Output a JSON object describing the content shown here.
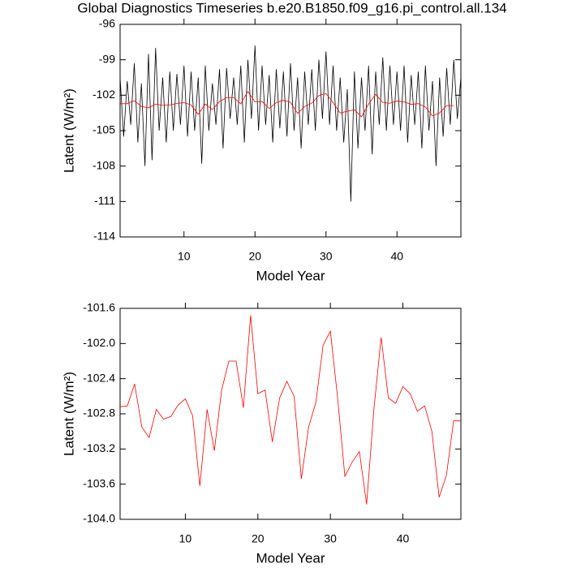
{
  "chart_data": [
    {
      "type": "line",
      "title": "Global Diagnostics Timeseries b.e20.B1850.f09_g16.pi_control.all.134",
      "xlabel": "Model Year",
      "ylabel": "Latent (W/m²)",
      "xlim": [
        1,
        49
      ],
      "xticks": [
        10,
        20,
        30,
        40
      ],
      "ylim": [
        -114,
        -96
      ],
      "yticks": [
        -96,
        -99,
        -102,
        -105,
        -108,
        -111,
        -114
      ],
      "series": [
        {
          "color": "#000000",
          "x": [
            1,
            1.5,
            2,
            2.5,
            3,
            3.5,
            4,
            4.5,
            5,
            5.5,
            6,
            6.5,
            7,
            7.5,
            8,
            8.5,
            9,
            9.5,
            10,
            10.5,
            11,
            11.5,
            12,
            12.5,
            13,
            13.5,
            14,
            14.5,
            15,
            15.5,
            16,
            16.5,
            17,
            17.5,
            18,
            18.5,
            19,
            19.5,
            20,
            20.5,
            21,
            21.5,
            22,
            22.5,
            23,
            23.5,
            24,
            24.5,
            25,
            25.5,
            26,
            26.5,
            27,
            27.5,
            28,
            28.5,
            29,
            29.5,
            30,
            30.5,
            31,
            31.5,
            32,
            32.5,
            33,
            33.5,
            34,
            34.5,
            35,
            35.5,
            36,
            36.5,
            37,
            37.5,
            38,
            38.5,
            39,
            39.5,
            40,
            40.5,
            41,
            41.5,
            42,
            42.5,
            43,
            43.5,
            44,
            44.5,
            45,
            45.5,
            46,
            46.5,
            47,
            47.5,
            48,
            48.5,
            49
          ],
          "values": [
            -100.5,
            -105.5,
            -100.8,
            -104.5,
            -99.3,
            -106,
            -101,
            -108,
            -98.5,
            -107.5,
            -98,
            -105,
            -100.5,
            -106,
            -100,
            -105,
            -100.2,
            -104.5,
            -99.5,
            -105.5,
            -100,
            -105,
            -100.5,
            -107.8,
            -99.5,
            -105,
            -101,
            -104.5,
            -99.8,
            -106.5,
            -99.7,
            -104,
            -100.5,
            -104.5,
            -99.5,
            -106,
            -99,
            -104,
            -97.8,
            -105,
            -99.5,
            -104.5,
            -100.3,
            -106,
            -99.8,
            -104.8,
            -100,
            -105.5,
            -99.3,
            -105,
            -100.5,
            -106.5,
            -100,
            -104.5,
            -99.8,
            -105,
            -99,
            -104,
            -98.3,
            -104.5,
            -99.5,
            -105,
            -100.5,
            -106,
            -101.5,
            -111,
            -100,
            -106.5,
            -100.5,
            -105,
            -99.5,
            -107,
            -100,
            -104.5,
            -98.8,
            -105,
            -99.5,
            -104.5,
            -100,
            -105,
            -99.5,
            -106,
            -100.3,
            -104.5,
            -100,
            -106.5,
            -99.5,
            -105,
            -100.8,
            -108,
            -100.5,
            -105.5,
            -99.7,
            -104.5,
            -99,
            -104,
            -100.5
          ]
        },
        {
          "color": "#ff0000",
          "x": [
            1,
            2,
            3,
            4,
            5,
            6,
            7,
            8,
            9,
            10,
            11,
            12,
            13,
            14,
            15,
            16,
            17,
            18,
            19,
            20,
            21,
            22,
            23,
            24,
            25,
            26,
            27,
            28,
            29,
            30,
            31,
            32,
            33,
            34,
            35,
            36,
            37,
            38,
            39,
            40,
            41,
            42,
            43,
            44,
            45,
            46,
            47,
            48
          ],
          "values": [
            -102.72,
            -102.71,
            -102.46,
            -102.95,
            -103.07,
            -102.75,
            -102.86,
            -102.83,
            -102.7,
            -102.63,
            -102.82,
            -103.62,
            -102.75,
            -103.22,
            -102.53,
            -102.2,
            -102.2,
            -102.73,
            -101.68,
            -102.57,
            -102.53,
            -103.12,
            -102.62,
            -102.43,
            -102.6,
            -103.54,
            -102.95,
            -102.67,
            -102.02,
            -101.86,
            -102.62,
            -103.51,
            -103.35,
            -103.23,
            -103.83,
            -102.75,
            -101.93,
            -102.62,
            -102.68,
            -102.49,
            -102.57,
            -102.77,
            -102.71,
            -103.0,
            -103.75,
            -103.5,
            -102.88,
            -102.88
          ]
        }
      ]
    },
    {
      "type": "line",
      "xlabel": "Model Year",
      "ylabel": "Latent (W/m²)",
      "xlim": [
        1,
        48
      ],
      "xticks": [
        10,
        20,
        30,
        40
      ],
      "ylim": [
        -104,
        -101.6
      ],
      "yticks": [
        -101.6,
        {
          "value": -102,
          "label": "-102.0"
        },
        -102.4,
        -102.8,
        -103.2,
        -103.6,
        {
          "value": -104,
          "label": "-104.0"
        }
      ],
      "series": [
        {
          "color": "#ff0000",
          "x": [
            1,
            2,
            3,
            4,
            5,
            6,
            7,
            8,
            9,
            10,
            11,
            12,
            13,
            14,
            15,
            16,
            17,
            18,
            19,
            20,
            21,
            22,
            23,
            24,
            25,
            26,
            27,
            28,
            29,
            30,
            31,
            32,
            33,
            34,
            35,
            36,
            37,
            38,
            39,
            40,
            41,
            42,
            43,
            44,
            45,
            46,
            47,
            48
          ],
          "values": [
            -102.72,
            -102.71,
            -102.46,
            -102.95,
            -103.07,
            -102.75,
            -102.86,
            -102.83,
            -102.7,
            -102.63,
            -102.82,
            -103.62,
            -102.75,
            -103.22,
            -102.53,
            -102.2,
            -102.2,
            -102.73,
            -101.68,
            -102.57,
            -102.53,
            -103.12,
            -102.62,
            -102.43,
            -102.6,
            -103.54,
            -102.95,
            -102.67,
            -102.02,
            -101.86,
            -102.62,
            -103.51,
            -103.35,
            -103.23,
            -103.83,
            -102.75,
            -101.93,
            -102.62,
            -102.68,
            -102.49,
            -102.57,
            -102.77,
            -102.71,
            -103.0,
            -103.75,
            -103.5,
            -102.88,
            -102.88
          ]
        }
      ]
    }
  ]
}
